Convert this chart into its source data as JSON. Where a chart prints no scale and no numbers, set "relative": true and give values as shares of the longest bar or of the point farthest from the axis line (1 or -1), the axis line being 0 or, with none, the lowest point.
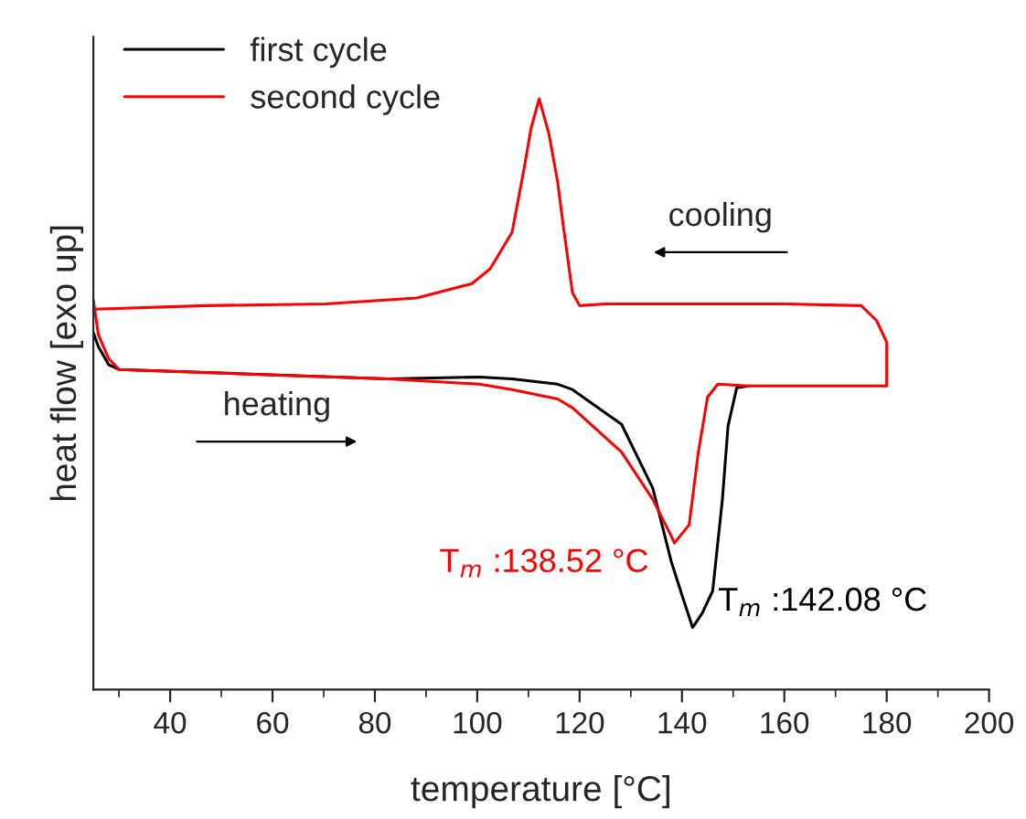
{
  "chart_data": {
    "type": "line",
    "relative": true,
    "xlabel": "temperature [°C]",
    "ylabel": "heat flow [exo up]",
    "xlim": [
      25,
      200
    ],
    "xticks": [
      {
        "value": 30,
        "label": null
      },
      40,
      {
        "value": 50,
        "label": null
      },
      60,
      {
        "value": 70,
        "label": null
      },
      80,
      {
        "value": 90,
        "label": null
      },
      100,
      {
        "value": 110,
        "label": null
      },
      120,
      {
        "value": 130,
        "label": null
      },
      140,
      {
        "value": 150,
        "label": null
      },
      160,
      {
        "value": 170,
        "label": null
      },
      180,
      {
        "value": 190,
        "label": null
      },
      200
    ],
    "legend": "top left",
    "grid": false,
    "marker": "none",
    "line_style": "solid",
    "series": [
      {
        "name": "first cycle",
        "color": "#000000",
        "x": [
          25,
          26,
          28,
          30,
          82.5,
          100.4,
          106.8,
          115.7,
          118.6,
          128.2,
          134.3,
          137.9,
          140,
          142.08,
          144,
          146,
          147.9,
          149,
          150.7,
          153
        ],
        "values": [
          0.604,
          0.58,
          0.55,
          0.542,
          0.526,
          0.529,
          0.526,
          0.517,
          0.508,
          0.449,
          0.341,
          0.217,
          0.16,
          0.105,
          0.13,
          0.167,
          0.322,
          0.446,
          0.511,
          0.514
        ]
      },
      {
        "name": "second cycle",
        "color": "#ff0000",
        "x": [
          25,
          26,
          28,
          30,
          58.6,
          82.5,
          100.4,
          106.8,
          115.7,
          118.6,
          128.2,
          134.3,
          137.9,
          138.52,
          141.4,
          143.2,
          145,
          147,
          153,
          180,
          180,
          178,
          175,
          160,
          140,
          125,
          120,
          118.6,
          116.8,
          115.7,
          114,
          112.1,
          110.5,
          109.3,
          106.8,
          102.5,
          98.9,
          88.2,
          70.4,
          46.8,
          25.4
        ],
        "values": [
          0.659,
          0.6,
          0.56,
          0.542,
          0.533,
          0.526,
          0.517,
          0.508,
          0.492,
          0.477,
          0.402,
          0.322,
          0.26,
          0.248,
          0.279,
          0.402,
          0.495,
          0.517,
          0.514,
          0.514,
          0.588,
          0.625,
          0.65,
          0.653,
          0.653,
          0.653,
          0.65,
          0.672,
          0.786,
          0.86,
          0.941,
          1,
          0.95,
          0.889,
          0.774,
          0.712,
          0.687,
          0.663,
          0.653,
          0.65,
          0.644
        ]
      }
    ],
    "annotations": [
      "cooling",
      "heating",
      {
        "text": "T$_{m}$ :138.52 °C",
        "x": 138.52,
        "y": 0.248
      },
      {
        "text": "T$_{m}$ :142.08 °C",
        "x": 142.08,
        "y": 0.105
      }
    ]
  }
}
